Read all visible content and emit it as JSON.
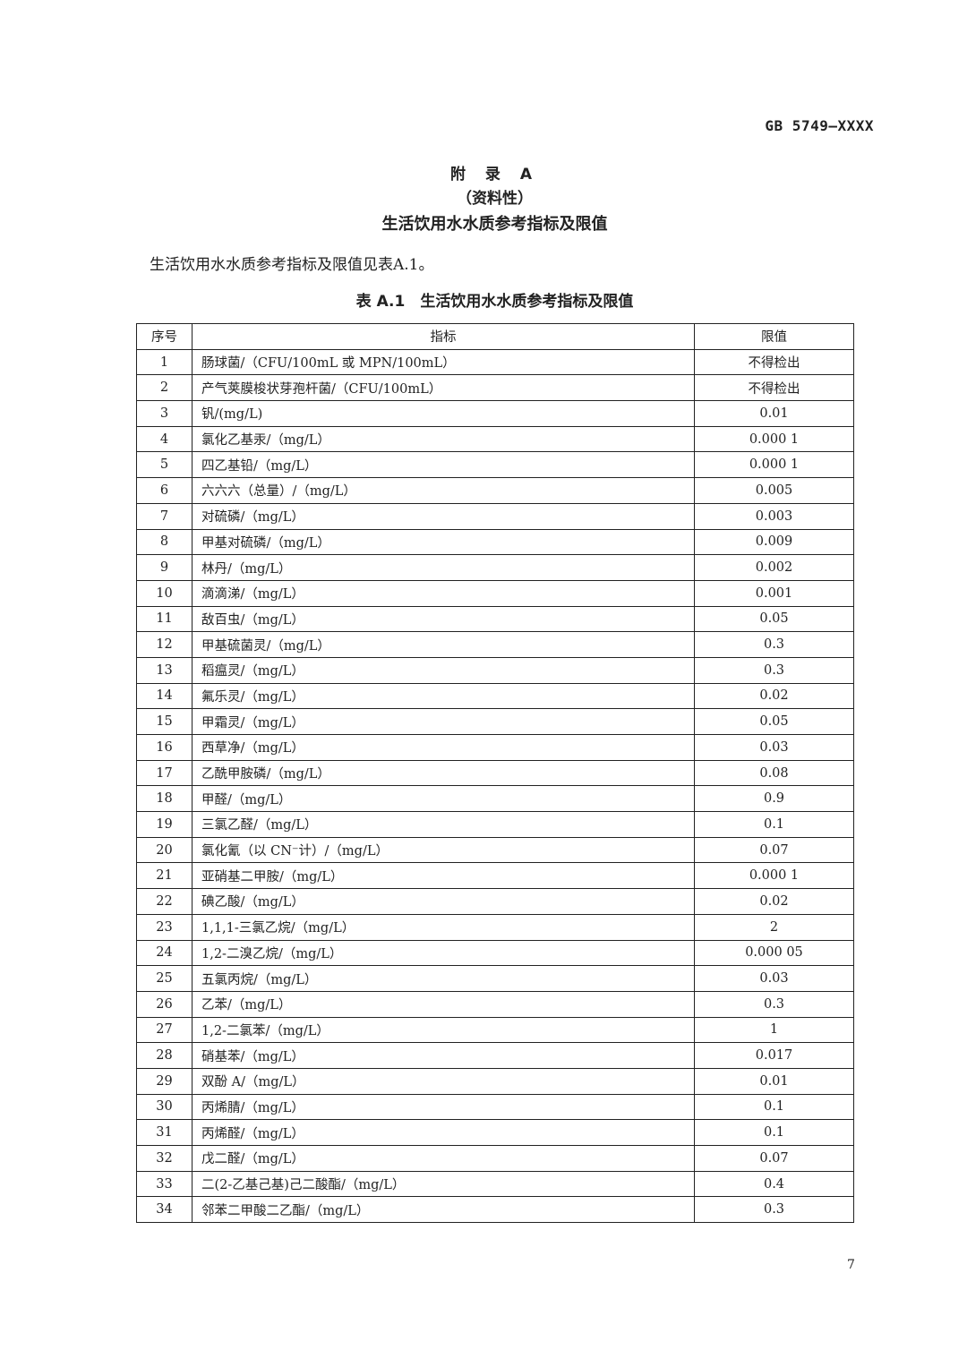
{
  "header": {
    "standard_no": "GB 5749—XXXX"
  },
  "appendix": {
    "title": "附 录 A",
    "nature": "（资料性）",
    "subtitle": "生活饮用水水质参考指标及限值"
  },
  "intro": "生活饮用水水质参考指标及限值见表A.1。",
  "table": {
    "caption": "表 A.1　生活饮用水水质参考指标及限值",
    "headers": [
      "序号",
      "指标",
      "限值"
    ],
    "rows": [
      [
        "1",
        "肠球菌/（CFU/100mL 或 MPN/100mL）",
        "不得检出"
      ],
      [
        "2",
        "产气荚膜梭状芽孢杆菌/（CFU/100mL）",
        "不得检出"
      ],
      [
        "3",
        "钒/(mg/L)",
        "0.01"
      ],
      [
        "4",
        "氯化乙基汞/（mg/L）",
        "0.000 1"
      ],
      [
        "5",
        "四乙基铅/（mg/L）",
        "0.000 1"
      ],
      [
        "6",
        "六六六（总量）/（mg/L）",
        "0.005"
      ],
      [
        "7",
        "对硫磷/（mg/L）",
        "0.003"
      ],
      [
        "8",
        "甲基对硫磷/（mg/L）",
        "0.009"
      ],
      [
        "9",
        "林丹/（mg/L）",
        "0.002"
      ],
      [
        "10",
        "滴滴涕/（mg/L）",
        "0.001"
      ],
      [
        "11",
        "敌百虫/（mg/L）",
        "0.05"
      ],
      [
        "12",
        "甲基硫菌灵/（mg/L）",
        "0.3"
      ],
      [
        "13",
        "稻瘟灵/（mg/L）",
        "0.3"
      ],
      [
        "14",
        "氟乐灵/（mg/L）",
        "0.02"
      ],
      [
        "15",
        "甲霜灵/（mg/L）",
        "0.05"
      ],
      [
        "16",
        "西草净/（mg/L）",
        "0.03"
      ],
      [
        "17",
        "乙酰甲胺磷/（mg/L）",
        "0.08"
      ],
      [
        "18",
        "甲醛/（mg/L）",
        "0.9"
      ],
      [
        "19",
        "三氯乙醛/（mg/L）",
        "0.1"
      ],
      [
        "20",
        "氯化氰（以 CN⁻计）/（mg/L）",
        "0.07"
      ],
      [
        "21",
        "亚硝基二甲胺/（mg/L）",
        "0.000 1"
      ],
      [
        "22",
        "碘乙酸/（mg/L）",
        "0.02"
      ],
      [
        "23",
        "1,1,1-三氯乙烷/（mg/L）",
        "2"
      ],
      [
        "24",
        "1,2-二溴乙烷/（mg/L）",
        "0.000 05"
      ],
      [
        "25",
        "五氯丙烷/（mg/L）",
        "0.03"
      ],
      [
        "26",
        "乙苯/（mg/L）",
        "0.3"
      ],
      [
        "27",
        "1,2-二氯苯/（mg/L）",
        "1"
      ],
      [
        "28",
        "硝基苯/（mg/L）",
        "0.017"
      ],
      [
        "29",
        "双酚 A/（mg/L）",
        "0.01"
      ],
      [
        "30",
        "丙烯腈/（mg/L）",
        "0.1"
      ],
      [
        "31",
        "丙烯醛/（mg/L）",
        "0.1"
      ],
      [
        "32",
        "戊二醛/（mg/L）",
        "0.07"
      ],
      [
        "33",
        "二(2-乙基己基)己二酸酯/（mg/L）",
        "0.4"
      ],
      [
        "34",
        "邻苯二甲酸二乙酯/（mg/L）",
        "0.3"
      ]
    ]
  },
  "page_number": "7"
}
